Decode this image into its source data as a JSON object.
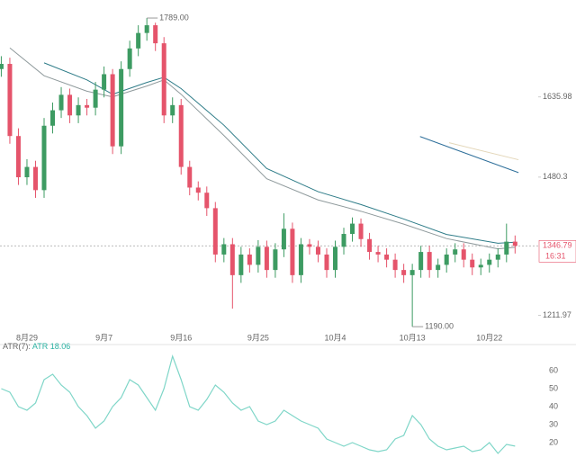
{
  "chart_data": [
    {
      "type": "candlestick",
      "x": [
        0,
        1,
        2,
        3,
        4,
        5,
        6,
        7,
        8,
        9,
        10,
        11,
        12,
        13,
        14,
        15,
        16,
        17,
        18,
        19,
        20,
        21,
        22,
        23,
        24,
        25,
        26,
        27,
        28,
        29,
        30,
        31,
        32,
        33,
        34,
        35,
        36,
        37,
        38,
        39,
        40,
        41,
        42,
        43,
        44,
        45,
        46,
        47,
        48,
        49,
        50,
        51,
        52,
        53,
        54,
        55,
        56,
        57,
        58,
        59,
        60
      ],
      "open": [
        1690,
        1700,
        1560,
        1480,
        1500,
        1455,
        1580,
        1610,
        1640,
        1600,
        1620,
        1615,
        1650,
        1680,
        1540,
        1690,
        1730,
        1760,
        1775,
        1740,
        1600,
        1620,
        1500,
        1460,
        1450,
        1420,
        1330,
        1350,
        1290,
        1330,
        1310,
        1345,
        1300,
        1340,
        1380,
        1290,
        1350,
        1345,
        1330,
        1300,
        1345,
        1370,
        1390,
        1360,
        1335,
        1330,
        1320,
        1300,
        1290,
        1300,
        1335,
        1300,
        1310,
        1330,
        1340,
        1320,
        1305,
        1310,
        1320,
        1330,
        1355
      ],
      "high": [
        1715,
        1712,
        1575,
        1515,
        1512,
        1595,
        1625,
        1655,
        1652,
        1635,
        1632,
        1665,
        1695,
        1690,
        1705,
        1745,
        1775,
        1789,
        1780,
        1752,
        1635,
        1632,
        1512,
        1472,
        1462,
        1432,
        1362,
        1362,
        1345,
        1342,
        1358,
        1357,
        1352,
        1410,
        1392,
        1362,
        1360,
        1357,
        1342,
        1357,
        1382,
        1402,
        1400,
        1372,
        1347,
        1342,
        1332,
        1312,
        1312,
        1347,
        1347,
        1322,
        1342,
        1352,
        1352,
        1332,
        1322,
        1332,
        1342,
        1390,
        1367
      ],
      "low": [
        1675,
        1545,
        1465,
        1465,
        1440,
        1440,
        1565,
        1595,
        1585,
        1585,
        1600,
        1600,
        1635,
        1525,
        1525,
        1675,
        1715,
        1745,
        1725,
        1585,
        1585,
        1485,
        1445,
        1435,
        1405,
        1315,
        1315,
        1225,
        1275,
        1295,
        1295,
        1285,
        1285,
        1325,
        1275,
        1275,
        1330,
        1315,
        1285,
        1285,
        1330,
        1355,
        1345,
        1320,
        1315,
        1305,
        1285,
        1275,
        1190,
        1285,
        1285,
        1285,
        1295,
        1315,
        1305,
        1290,
        1290,
        1295,
        1305,
        1315,
        1332
      ],
      "close": [
        1700,
        1560,
        1480,
        1500,
        1455,
        1580,
        1610,
        1640,
        1600,
        1620,
        1615,
        1650,
        1680,
        1540,
        1690,
        1730,
        1760,
        1775,
        1740,
        1600,
        1620,
        1500,
        1460,
        1450,
        1420,
        1330,
        1350,
        1290,
        1330,
        1310,
        1345,
        1300,
        1340,
        1380,
        1290,
        1350,
        1345,
        1330,
        1300,
        1345,
        1370,
        1390,
        1360,
        1335,
        1330,
        1320,
        1300,
        1290,
        1300,
        1335,
        1300,
        1310,
        1330,
        1340,
        1320,
        1305,
        1310,
        1320,
        1330,
        1355,
        1346.79
      ],
      "up_color": "#3d9b62",
      "down_color": "#e5546b",
      "series": [
        {
          "color": "#8f9a9c",
          "x": [
            1,
            5,
            10,
            13,
            17,
            19,
            21,
            26,
            31,
            37,
            42,
            47,
            52,
            58,
            60
          ],
          "values": [
            1731,
            1677,
            1647,
            1636,
            1657,
            1669,
            1641,
            1561,
            1477,
            1436,
            1414,
            1389,
            1361,
            1341,
            1344
          ]
        },
        {
          "color": "#2e7c88",
          "x": [
            5,
            10,
            13,
            17,
            19,
            21,
            26,
            31,
            37,
            42,
            47,
            52,
            58,
            60
          ],
          "values": [
            1702,
            1669,
            1641,
            1664,
            1674,
            1652,
            1581,
            1497,
            1452,
            1427,
            1399,
            1369,
            1352,
            1354
          ]
        },
        {
          "color": "#2e6f9a",
          "x": [
            48.9,
            60.4
          ],
          "values": [
            1559,
            1489
          ]
        },
        {
          "color": "#e3d6b8",
          "x": [
            52.3,
            60.4
          ],
          "values": [
            1547,
            1514
          ]
        }
      ],
      "xlim": [
        -0.15,
        62.7
      ],
      "ylim": [
        1178,
        1824
      ],
      "xticks": [
        {
          "value": 3,
          "label": "8月29"
        },
        {
          "value": 12,
          "label": "9月7"
        },
        {
          "value": 21,
          "label": "9月16"
        },
        {
          "value": 30,
          "label": "9月25"
        },
        {
          "value": 39,
          "label": "10月4"
        },
        {
          "value": 48,
          "label": "10月13"
        },
        {
          "value": 57,
          "label": "10月22"
        }
      ],
      "yticks": [
        1635.98,
        1480.3,
        1211.97
      ],
      "annotations": [
        {
          "x": 17,
          "value": 1789,
          "label": "1789.00"
        },
        {
          "x": 48,
          "value": 1190,
          "label": "1190.00"
        }
      ],
      "countdown": "16:31",
      "price_color": "#e5546b"
    },
    {
      "type": "line",
      "indicator": "ATR(7):",
      "x": [
        0,
        1,
        2,
        3,
        4,
        5,
        6,
        7,
        8,
        9,
        10,
        11,
        12,
        13,
        14,
        15,
        16,
        17,
        18,
        19,
        20,
        21,
        22,
        23,
        24,
        25,
        26,
        27,
        28,
        29,
        30,
        31,
        32,
        33,
        34,
        35,
        36,
        37,
        38,
        39,
        40,
        41,
        42,
        43,
        44,
        45,
        46,
        47,
        48,
        49,
        50,
        51,
        52,
        53,
        54,
        55,
        56,
        57,
        58,
        59,
        60
      ],
      "series": [
        {
          "name": "ATR",
          "color": "#7fd6c8",
          "values": [
            50,
            48,
            40,
            38,
            42,
            55,
            58,
            52,
            48,
            40,
            35,
            28,
            32,
            40,
            45,
            55,
            52,
            45,
            38,
            50,
            68,
            55,
            40,
            38,
            44,
            52,
            48,
            42,
            38,
            40,
            32,
            30,
            32,
            38,
            35,
            32,
            30,
            28,
            22,
            20,
            18,
            20,
            18,
            16,
            15,
            16,
            22,
            24,
            35,
            30,
            22,
            18,
            16,
            17,
            18,
            15,
            16,
            20,
            14,
            19,
            18.06
          ]
        }
      ],
      "xlim": [
        -0.15,
        62.7
      ],
      "ylim": [
        12,
        76
      ],
      "yticks": [
        60,
        50,
        40,
        30,
        20
      ]
    }
  ]
}
